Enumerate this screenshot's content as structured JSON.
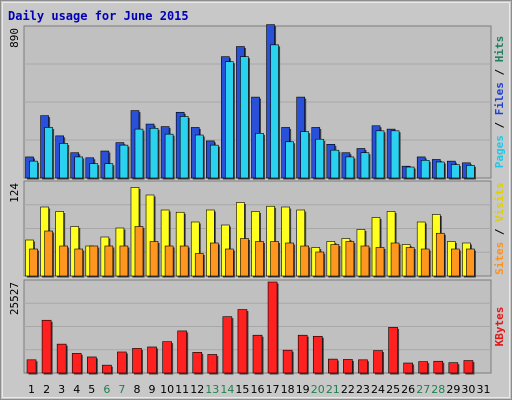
{
  "chart_data": {
    "type": "bar",
    "title": "Daily usage for June 2015",
    "categories": [
      "1",
      "2",
      "3",
      "4",
      "5",
      "6",
      "7",
      "8",
      "9",
      "10",
      "11",
      "12",
      "13",
      "14",
      "15",
      "16",
      "17",
      "18",
      "19",
      "20",
      "21",
      "22",
      "23",
      "24",
      "25",
      "26",
      "27",
      "28",
      "29",
      "30",
      "31"
    ],
    "weekend_days": [
      "6",
      "7",
      "13",
      "14",
      "20",
      "21",
      "27",
      "28"
    ],
    "panels": [
      {
        "id": "hits-files-pages",
        "ymax_label": "890",
        "ylim": [
          0,
          890
        ],
        "labels": [
          "Pages",
          "Files",
          "Hits"
        ],
        "series": [
          {
            "name": "Hits",
            "color": "#2850d8",
            "values": [
              125,
              370,
              250,
              150,
              120,
              160,
              210,
              400,
              320,
              305,
              390,
              300,
              220,
              720,
              780,
              480,
              910,
              300,
              480,
              300,
              200,
              150,
              175,
              310,
              290,
              70,
              125,
              110,
              100,
              90,
              0
            ]
          },
          {
            "name": "Files",
            "color": "#2ad2f0",
            "values": [
              100,
              300,
              205,
              125,
              85,
              85,
              195,
              290,
              295,
              260,
              365,
              255,
              195,
              690,
              720,
              265,
              790,
              215,
              275,
              230,
              165,
              125,
              150,
              280,
              280,
              65,
              105,
              95,
              80,
              75,
              0
            ]
          }
        ]
      },
      {
        "id": "visits-sites",
        "ymax_label": "124",
        "ylim": [
          0,
          124
        ],
        "labels": [
          "Sites",
          "Visits"
        ],
        "series": [
          {
            "name": "Visits",
            "color": "#ffff20",
            "values": [
              48,
              92,
              86,
              66,
              40,
              52,
              64,
              118,
              108,
              88,
              85,
              72,
              88,
              68,
              98,
              86,
              93,
              92,
              88,
              38,
              46,
              50,
              62,
              78,
              86,
              42,
              72,
              82,
              46,
              44,
              0
            ]
          },
          {
            "name": "Sites",
            "color": "#ff9620",
            "values": [
              36,
              60,
              40,
              36,
              40,
              40,
              40,
              66,
              46,
              40,
              40,
              30,
              44,
              36,
              50,
              46,
              46,
              44,
              40,
              32,
              42,
              46,
              40,
              38,
              44,
              38,
              36,
              57,
              36,
              36,
              0
            ]
          }
        ]
      },
      {
        "id": "kbytes",
        "ymax_label": "25527",
        "ylim": [
          0,
          25527
        ],
        "labels": [
          "KBytes"
        ],
        "series": [
          {
            "name": "KBytes",
            "color": "#ff2020",
            "values": [
              3700,
              14800,
              8100,
              5500,
              4500,
              2200,
              5900,
              6900,
              7300,
              8800,
              11800,
              5800,
              5200,
              15800,
              17800,
              10600,
              25527,
              6400,
              10600,
              10300,
              3900,
              3800,
              3700,
              6300,
              12800,
              2800,
              3200,
              3300,
              2900,
              3500,
              0
            ]
          }
        ]
      }
    ]
  }
}
